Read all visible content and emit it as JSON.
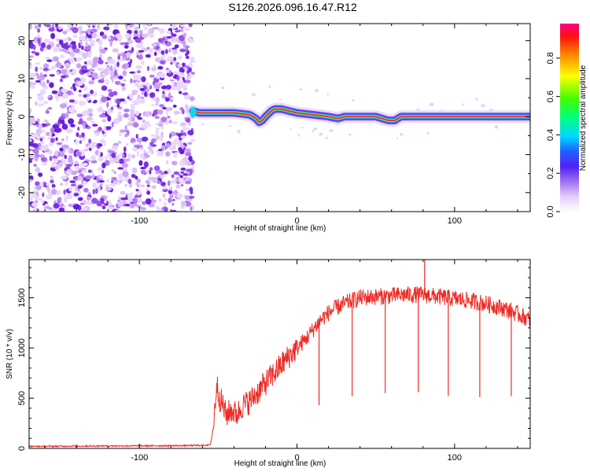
{
  "title": "S126.2026.096.16.47.R12",
  "colors": {
    "snr_line": "#ee2a24",
    "axis": "#000000"
  },
  "chart_data": [
    {
      "type": "heatmap",
      "name": "spectrogram",
      "xlabel": "Height of straight line (km)",
      "ylabel": "Frequency (Hz)",
      "xlim": [
        -170,
        148
      ],
      "ylim": [
        -25,
        24.5
      ],
      "xticks": [
        -100,
        0,
        100
      ],
      "yticks": [
        -20,
        -10,
        0,
        10,
        20
      ],
      "noise_region_x": [
        -170,
        -66
      ],
      "signal_start_x": -66,
      "tone_track": {
        "x": [
          -66,
          -62,
          -50,
          -40,
          -30,
          -26,
          -24,
          -22,
          -20,
          -18,
          -16,
          -14,
          -10,
          -6,
          0,
          10,
          20,
          26,
          30,
          40,
          50,
          58,
          62,
          66,
          70,
          80,
          90,
          100,
          110,
          120,
          130,
          140,
          148
        ],
        "freq": [
          1.5,
          1.0,
          1.0,
          1.0,
          0.5,
          -0.5,
          -1.5,
          -1.0,
          0.0,
          0.8,
          1.6,
          2.0,
          2.0,
          1.6,
          1.0,
          0.5,
          0.0,
          -0.5,
          0.0,
          0.0,
          0.0,
          -1.0,
          -1.0,
          0.0,
          0.0,
          0.0,
          0.0,
          0.0,
          0.0,
          0.0,
          0.0,
          0.0,
          0.0
        ]
      },
      "colorbar": {
        "label": "Normalized spectral amplitude",
        "range": [
          0.0,
          0.98
        ],
        "ticks": [
          "0.0",
          "0.2",
          "0.4",
          "0.6",
          "0.8"
        ],
        "tick_values": [
          0.0,
          0.2,
          0.4,
          0.6,
          0.8
        ]
      }
    },
    {
      "type": "line",
      "name": "snr",
      "xlabel": "Height of straight line (km)",
      "ylabel": "SNR (10 * v/v)",
      "xlim": [
        -170,
        148
      ],
      "ylim": [
        0,
        1880
      ],
      "xticks": [
        -100,
        0,
        100
      ],
      "yticks": [
        0,
        500,
        1000,
        1500
      ],
      "series": [
        {
          "name": "SNR",
          "x": [
            -170,
            -150,
            -130,
            -110,
            -90,
            -70,
            -60,
            -55,
            -53,
            -51,
            -49,
            -47,
            -45,
            -42,
            -38,
            -35,
            -30,
            -25,
            -20,
            -15,
            -10,
            -5,
            0,
            5,
            10,
            15,
            20,
            25,
            30,
            35,
            40,
            50,
            60,
            70,
            80,
            90,
            100,
            110,
            120,
            130,
            140,
            148
          ],
          "values": [
            20,
            22,
            24,
            25,
            26,
            28,
            30,
            35,
            220,
            640,
            500,
            430,
            330,
            380,
            340,
            420,
            470,
            560,
            650,
            740,
            830,
            920,
            1000,
            1080,
            1180,
            1280,
            1350,
            1400,
            1440,
            1470,
            1500,
            1510,
            1520,
            1530,
            1530,
            1510,
            1490,
            1470,
            1440,
            1400,
            1340,
            1280
          ]
        }
      ],
      "spikes_down": [
        {
          "x": 14,
          "value": 430
        },
        {
          "x": 35,
          "value": 520
        },
        {
          "x": 56,
          "value": 550
        },
        {
          "x": 77,
          "value": 560
        },
        {
          "x": 96,
          "value": 520
        },
        {
          "x": 116,
          "value": 510
        },
        {
          "x": 136,
          "value": 520
        }
      ],
      "spikes_up": [
        {
          "x": 81,
          "value": 1880
        }
      ]
    }
  ]
}
